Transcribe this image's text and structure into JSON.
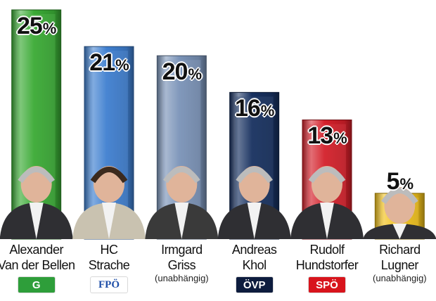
{
  "chart_data": {
    "type": "bar",
    "categories": [
      "Alexander Van der Bellen",
      "HC Strache",
      "Irmgard Griss",
      "Andreas Khol",
      "Rudolf Hundstorfer",
      "Richard Lugner"
    ],
    "values": [
      25,
      21,
      20,
      16,
      13,
      5
    ],
    "unit": "%",
    "ylim": [
      0,
      25
    ],
    "grid": false,
    "legend": "none"
  },
  "candidates": [
    {
      "line1": "Alexander",
      "line2": "Van der Bellen",
      "sub": "",
      "party": "G",
      "party_color": "#2e9e3a",
      "bar_color": "#3aaa35"
    },
    {
      "line1": "HC",
      "line2": "Strache",
      "sub": "",
      "party": "FPÖ",
      "party_color": "#ffffff",
      "bar_color": "#3f7fd0"
    },
    {
      "line1": "Irmgard",
      "line2": "Griss",
      "sub": "(unabhängig)",
      "party": "",
      "party_color": "",
      "bar_color": "#7a93b8"
    },
    {
      "line1": "Andreas",
      "line2": "Khol",
      "sub": "",
      "party": "ÖVP",
      "party_color": "#0d1c3e",
      "bar_color": "#17305f"
    },
    {
      "line1": "Rudolf",
      "line2": "Hundstorfer",
      "sub": "",
      "party": "SPÖ",
      "party_color": "#d8141c",
      "bar_color": "#d4202a"
    },
    {
      "line1": "Richard",
      "line2": "Lugner",
      "sub": "(unabhängig)",
      "party": "",
      "party_color": "",
      "bar_color": "#f2c21b"
    }
  ]
}
